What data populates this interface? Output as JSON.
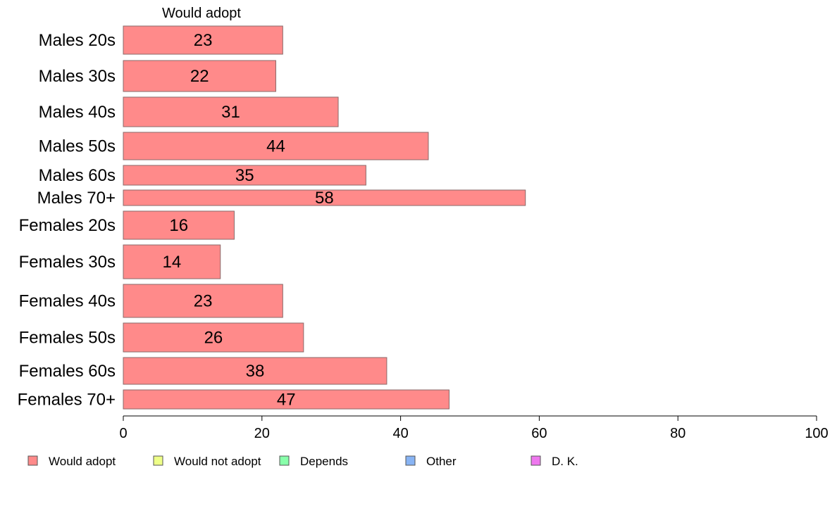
{
  "chart_data": {
    "type": "bar",
    "orientation": "horizontal",
    "stacked": true,
    "categories": [
      "Males 20s",
      "Males 30s",
      "Males 40s",
      "Males 50s",
      "Males 60s",
      "Males 70+",
      "Females 20s",
      "Females 30s",
      "Females 40s",
      "Females 50s",
      "Females 60s",
      "Females 70+"
    ],
    "series": [
      {
        "name": "Would adopt",
        "values": [
          23,
          22,
          31,
          44,
          35,
          58,
          16,
          14,
          23,
          26,
          38,
          47
        ],
        "color": "#ff8a8a"
      }
    ],
    "legend": [
      {
        "name": "Would adopt",
        "color": "#ff8a8a"
      },
      {
        "name": "Would not adopt",
        "color": "#eeff88"
      },
      {
        "name": "Depends",
        "color": "#88ffaa"
      },
      {
        "name": "Other",
        "color": "#88b4f4"
      },
      {
        "name": "D. K.",
        "color": "#ee77ee"
      }
    ],
    "series_header": "Would adopt",
    "xlim": [
      0,
      100
    ],
    "xticks": [
      0,
      20,
      40,
      60,
      80,
      100
    ],
    "legend_position": "bottom",
    "grid": false
  }
}
